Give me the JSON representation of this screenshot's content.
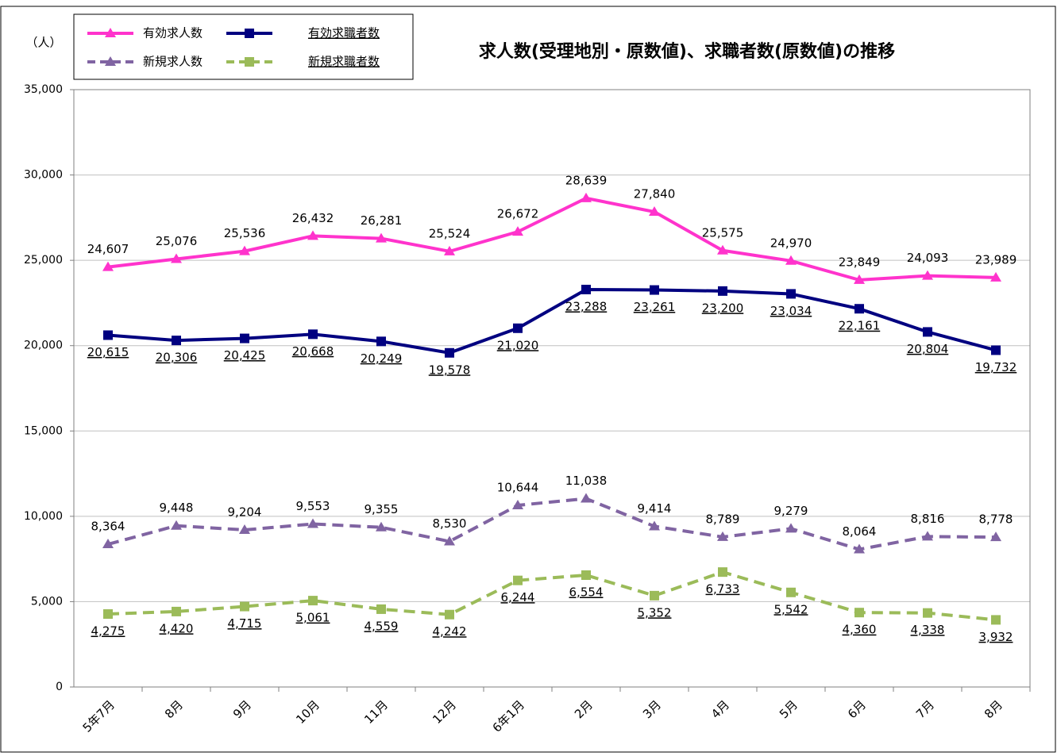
{
  "chart_data": {
    "type": "line",
    "title": "求人数(受理地別・原数値)、求職者数(原数値)の推移",
    "y_label": "（人）",
    "categories": [
      "5年7月",
      "8月",
      "9月",
      "10月",
      "11月",
      "12月",
      "6年1月",
      "2月",
      "3月",
      "4月",
      "5月",
      "6月",
      "7月",
      "8月"
    ],
    "ylim": [
      0,
      35000
    ],
    "yticks": [
      0,
      {
        "value": 5000,
        "label": "5,000"
      },
      {
        "value": 10000,
        "label": "10,000"
      },
      {
        "value": 15000,
        "label": "15,000"
      },
      {
        "value": 20000,
        "label": "20,000"
      },
      {
        "value": 25000,
        "label": "25,000"
      },
      {
        "value": 30000,
        "label": "30,000"
      },
      {
        "value": 35000,
        "label": "35,000"
      }
    ],
    "grid": true,
    "series": [
      {
        "name": "有効求人数",
        "color": "#ff33cc",
        "marker": "triangle",
        "dashed": false,
        "values": [
          24607,
          25076,
          25536,
          26432,
          26281,
          25524,
          26672,
          28639,
          27840,
          25575,
          24970,
          23849,
          24093,
          23989
        ],
        "value_labels": [
          "24,607",
          "25,076",
          "25,536",
          "26,432",
          "26,281",
          "25,524",
          "26,672",
          "28,639",
          "27,840",
          "25,575",
          "24,970",
          "23,849",
          "24,093",
          "23,989"
        ]
      },
      {
        "name": "有効求職者数",
        "color": "#000080",
        "marker": "square",
        "dashed": false,
        "values": [
          20615,
          20306,
          20425,
          20668,
          20249,
          19578,
          21020,
          23288,
          23261,
          23200,
          23034,
          22161,
          20804,
          19732
        ],
        "value_labels": [
          "20,615",
          "20,306",
          "20,425",
          "20,668",
          "20,249",
          "19,578",
          "21,020",
          "23,288",
          "23,261",
          "23,200",
          "23,034",
          "22,161",
          "20,804",
          "19,732"
        ]
      },
      {
        "name": "新規求人数",
        "color": "#8064a2",
        "marker": "triangle",
        "dashed": true,
        "values": [
          8364,
          9448,
          9204,
          9553,
          9355,
          8530,
          10644,
          11038,
          9414,
          8789,
          9279,
          8064,
          8816,
          8778
        ],
        "value_labels": [
          "8,364",
          "9,448",
          "9,204",
          "9,553",
          "9,355",
          "8,530",
          "10,644",
          "11,038",
          "9,414",
          "8,789",
          "9,279",
          "8,064",
          "8,816",
          "8,778"
        ]
      },
      {
        "name": "新規求職者数",
        "color": "#9bbb59",
        "marker": "square",
        "dashed": true,
        "values": [
          4275,
          4420,
          4715,
          5061,
          4559,
          4242,
          6244,
          6554,
          5352,
          6733,
          5542,
          4360,
          4338,
          3932
        ],
        "value_labels": [
          "4,275",
          "4,420",
          "4,715",
          "5,061",
          "4,559",
          "4,242",
          "6,244",
          "6,554",
          "5,352",
          "6,733",
          "5,542",
          "4,360",
          "4,338",
          "3,932"
        ]
      }
    ]
  }
}
